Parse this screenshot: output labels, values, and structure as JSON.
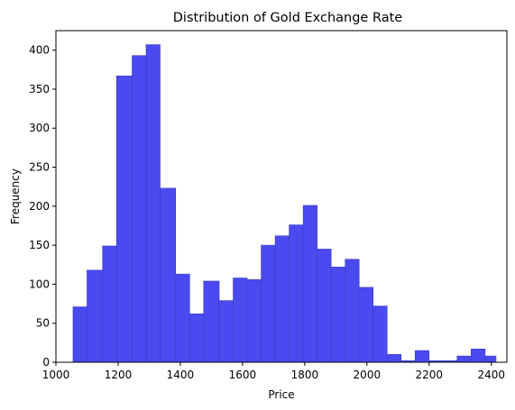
{
  "chart_data": {
    "type": "bar",
    "title": "Distribution of Gold Exchange Rate",
    "xlabel": "Price",
    "ylabel": "Frequency",
    "xlim": [
      1000,
      2450
    ],
    "ylim": [
      0,
      425
    ],
    "xticks": [
      1000,
      1200,
      1400,
      1600,
      1800,
      2000,
      2200,
      2400
    ],
    "yticks": [
      0,
      50,
      100,
      150,
      200,
      250,
      300,
      350,
      400
    ],
    "grid": false,
    "legend": "none",
    "bar_color": "#4a4af0",
    "bar_edge_color": "#3a3ac8",
    "bins": [
      {
        "x0": 1055,
        "x1": 1100,
        "value": 71
      },
      {
        "x0": 1100,
        "x1": 1150,
        "value": 118
      },
      {
        "x0": 1150,
        "x1": 1195,
        "value": 149
      },
      {
        "x0": 1195,
        "x1": 1245,
        "value": 367
      },
      {
        "x0": 1245,
        "x1": 1290,
        "value": 393
      },
      {
        "x0": 1290,
        "x1": 1335,
        "value": 407
      },
      {
        "x0": 1335,
        "x1": 1385,
        "value": 223
      },
      {
        "x0": 1385,
        "x1": 1430,
        "value": 113
      },
      {
        "x0": 1430,
        "x1": 1475,
        "value": 62
      },
      {
        "x0": 1475,
        "x1": 1525,
        "value": 104
      },
      {
        "x0": 1525,
        "x1": 1570,
        "value": 79
      },
      {
        "x0": 1570,
        "x1": 1615,
        "value": 108
      },
      {
        "x0": 1615,
        "x1": 1660,
        "value": 106
      },
      {
        "x0": 1660,
        "x1": 1705,
        "value": 150
      },
      {
        "x0": 1705,
        "x1": 1750,
        "value": 162
      },
      {
        "x0": 1750,
        "x1": 1795,
        "value": 176
      },
      {
        "x0": 1795,
        "x1": 1840,
        "value": 201
      },
      {
        "x0": 1840,
        "x1": 1885,
        "value": 145
      },
      {
        "x0": 1885,
        "x1": 1930,
        "value": 122
      },
      {
        "x0": 1930,
        "x1": 1975,
        "value": 132
      },
      {
        "x0": 1975,
        "x1": 2020,
        "value": 96
      },
      {
        "x0": 2020,
        "x1": 2065,
        "value": 72
      },
      {
        "x0": 2065,
        "x1": 2110,
        "value": 10
      },
      {
        "x0": 2110,
        "x1": 2155,
        "value": 2
      },
      {
        "x0": 2155,
        "x1": 2200,
        "value": 15
      },
      {
        "x0": 2200,
        "x1": 2245,
        "value": 2
      },
      {
        "x0": 2245,
        "x1": 2290,
        "value": 2
      },
      {
        "x0": 2290,
        "x1": 2335,
        "value": 8
      },
      {
        "x0": 2335,
        "x1": 2380,
        "value": 17
      },
      {
        "x0": 2380,
        "x1": 2415,
        "value": 8
      }
    ]
  }
}
